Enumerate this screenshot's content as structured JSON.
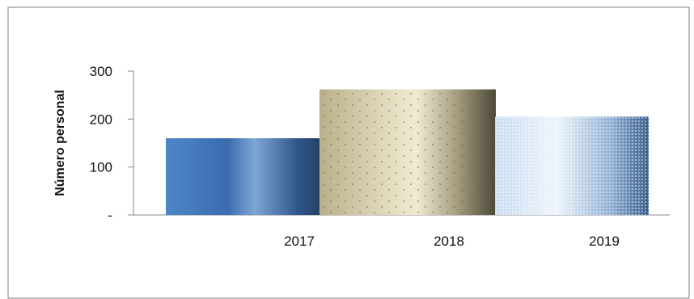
{
  "chart_data": {
    "type": "bar",
    "categories": [
      "2017",
      "2018",
      "2019"
    ],
    "values": [
      160,
      262,
      205
    ],
    "ylabel": "Número personal",
    "ylim": [
      0,
      300
    ],
    "yticks": [
      {
        "value": 0,
        "label": "-"
      },
      {
        "value": 100,
        "label": "100"
      },
      {
        "value": 200,
        "label": "200"
      },
      {
        "value": 300,
        "label": "300"
      }
    ],
    "grid": false,
    "colors": [
      "#3d6fb0",
      "#c8c09a",
      "#a9c3e0"
    ]
  }
}
